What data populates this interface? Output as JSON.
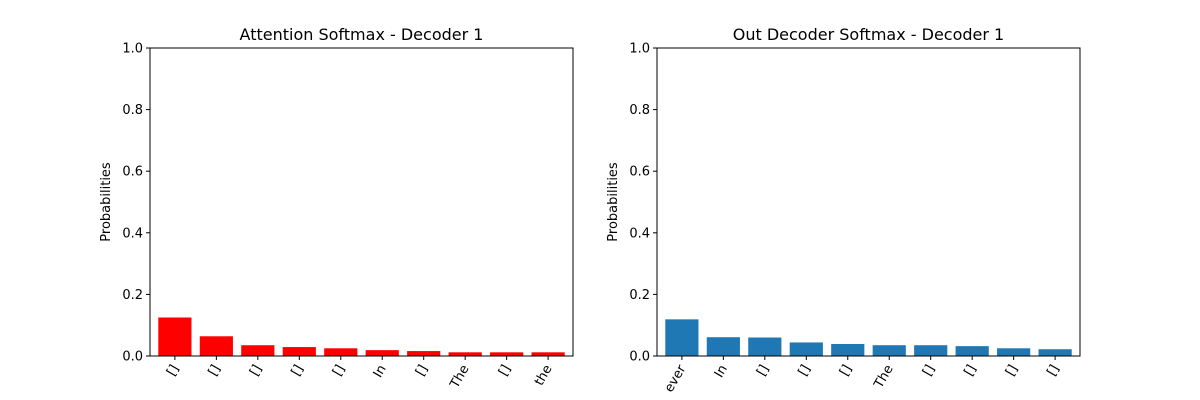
{
  "chart_data": [
    {
      "type": "bar",
      "title": "Attention Softmax - Decoder 1",
      "xlabel": "",
      "ylabel": "Probabilities",
      "ylim": [
        0,
        1.0
      ],
      "yticks": [
        "0.0",
        "0.2",
        "0.4",
        "0.6",
        "0.8",
        "1.0"
      ],
      "categories": [
        "[]",
        "[]",
        "[]",
        "[]",
        "[]",
        "In",
        "[]",
        "The",
        "[]",
        "the"
      ],
      "values": [
        0.125,
        0.064,
        0.035,
        0.029,
        0.025,
        0.019,
        0.016,
        0.012,
        0.012,
        0.012
      ],
      "bar_color": "#ff0000",
      "grid": false,
      "x_tick_rotation": 60
    },
    {
      "type": "bar",
      "title": "Out Decoder Softmax - Decoder 1",
      "xlabel": "",
      "ylabel": "Probabilities",
      "ylim": [
        0,
        1.0
      ],
      "yticks": [
        "0.0",
        "0.2",
        "0.4",
        "0.6",
        "0.8",
        "1.0"
      ],
      "categories": [
        "ever",
        "In",
        "[]",
        "[]",
        "[]",
        "The",
        "[]",
        "[]",
        "[]",
        "[]"
      ],
      "values": [
        0.119,
        0.061,
        0.06,
        0.044,
        0.039,
        0.035,
        0.035,
        0.032,
        0.025,
        0.022
      ],
      "bar_color": "#1f77b4",
      "grid": false,
      "x_tick_rotation": 60
    }
  ]
}
